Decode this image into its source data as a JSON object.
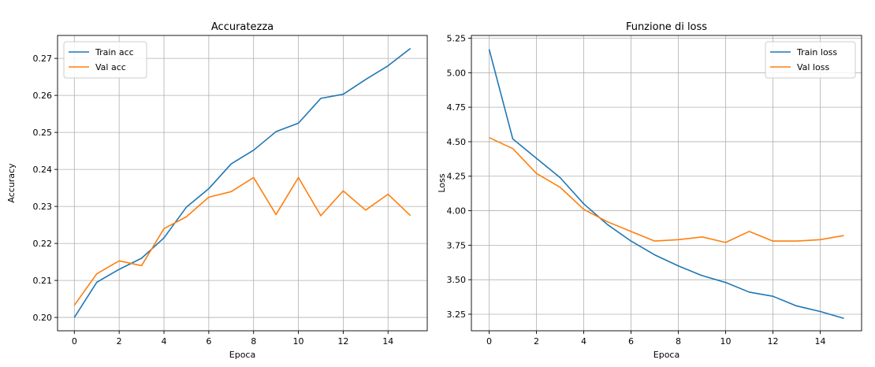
{
  "chart_data": [
    {
      "type": "line",
      "title": "Accuratezza",
      "xlabel": "Epoca",
      "ylabel": "Accuracy",
      "xlim": [
        -0.75,
        15.75
      ],
      "ylim": [
        0.1964,
        0.2762
      ],
      "xticks": [
        0,
        2,
        4,
        6,
        8,
        10,
        12,
        14
      ],
      "yticks": [
        0.2,
        0.21,
        0.22,
        0.23,
        0.24,
        0.25,
        0.26,
        0.27
      ],
      "ytick_labels": [
        "0.20",
        "0.21",
        "0.22",
        "0.23",
        "0.24",
        "0.25",
        "0.26",
        "0.27"
      ],
      "grid": true,
      "legend_position": "top-left",
      "x": [
        0,
        1,
        2,
        3,
        4,
        5,
        6,
        7,
        8,
        9,
        10,
        11,
        12,
        13,
        14,
        15
      ],
      "series": [
        {
          "name": "Train acc",
          "color": "#1f77b4",
          "values": [
            0.2,
            0.2095,
            0.213,
            0.216,
            0.2215,
            0.2298,
            0.2348,
            0.2415,
            0.2452,
            0.2502,
            0.2525,
            0.2592,
            0.2603,
            0.2643,
            0.268,
            0.2727
          ]
        },
        {
          "name": "Val acc",
          "color": "#ff7f0e",
          "values": [
            0.2033,
            0.2118,
            0.2153,
            0.214,
            0.224,
            0.2272,
            0.2325,
            0.234,
            0.2378,
            0.2278,
            0.2378,
            0.2275,
            0.2342,
            0.229,
            0.2333,
            0.2275
          ]
        }
      ]
    },
    {
      "type": "line",
      "title": "Funzione di loss",
      "xlabel": "Epoca",
      "ylabel": "Loss",
      "xlim": [
        -0.75,
        15.75
      ],
      "ylim": [
        3.13,
        5.27
      ],
      "xticks": [
        0,
        2,
        4,
        6,
        8,
        10,
        12,
        14
      ],
      "yticks": [
        3.25,
        3.5,
        3.75,
        4.0,
        4.25,
        4.5,
        4.75,
        5.0,
        5.25
      ],
      "ytick_labels": [
        "3.25",
        "3.50",
        "3.75",
        "4.00",
        "4.25",
        "4.50",
        "4.75",
        "5.00",
        "5.25"
      ],
      "grid": true,
      "legend_position": "top-right",
      "x": [
        0,
        1,
        2,
        3,
        4,
        5,
        6,
        7,
        8,
        9,
        10,
        11,
        12,
        13,
        14,
        15
      ],
      "series": [
        {
          "name": "Train loss",
          "color": "#1f77b4",
          "values": [
            5.17,
            4.52,
            4.38,
            4.24,
            4.05,
            3.9,
            3.78,
            3.68,
            3.6,
            3.53,
            3.48,
            3.41,
            3.38,
            3.31,
            3.27,
            3.22
          ]
        },
        {
          "name": "Val loss",
          "color": "#ff7f0e",
          "values": [
            4.53,
            4.45,
            4.27,
            4.17,
            4.01,
            3.92,
            3.85,
            3.78,
            3.79,
            3.81,
            3.77,
            3.85,
            3.78,
            3.78,
            3.79,
            3.82
          ]
        }
      ]
    }
  ]
}
